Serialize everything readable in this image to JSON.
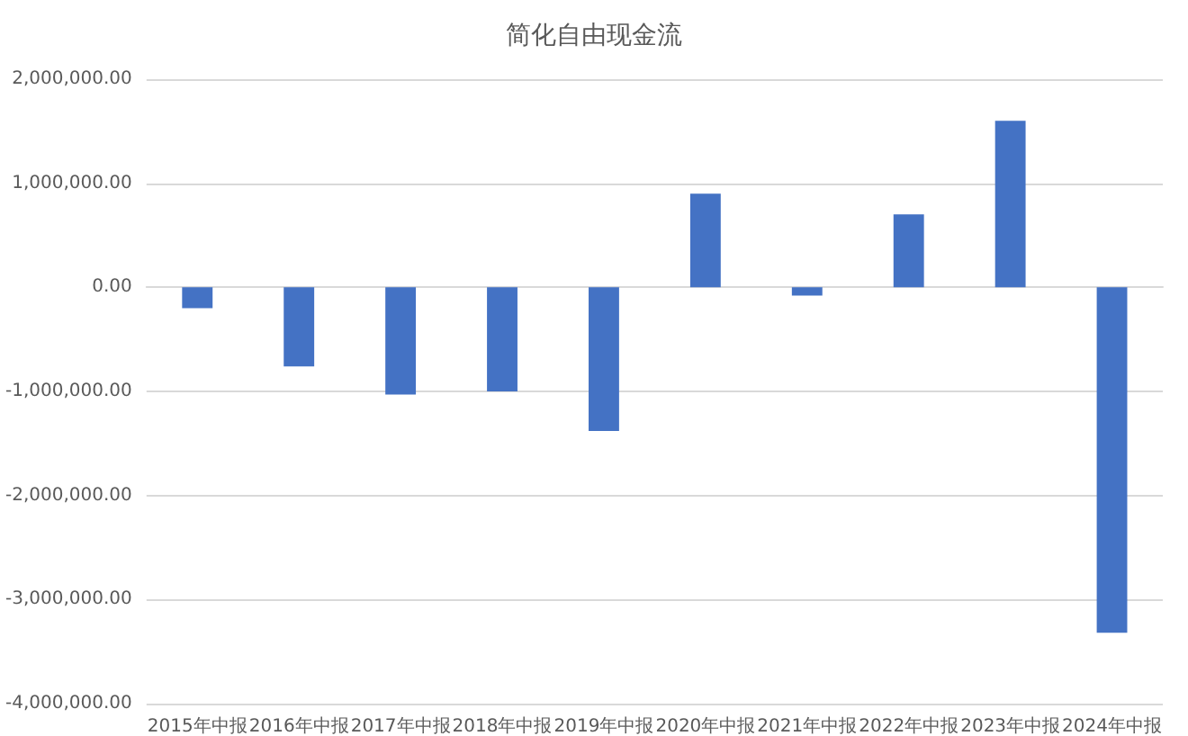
{
  "chart_data": {
    "type": "bar",
    "title": "简化自由现金流",
    "categories": [
      "2015年中报",
      "2016年中报",
      "2017年中报",
      "2018年中报",
      "2019年中报",
      "2020年中报",
      "2021年中报",
      "2022年中报",
      "2023年中报",
      "2024年中报"
    ],
    "values": [
      -200000,
      -760000,
      -1030000,
      -1000000,
      -1380000,
      900000,
      -80000,
      700000,
      1600000,
      -3320000
    ],
    "color": "#4472c4",
    "ylim": [
      -4000000,
      2000000
    ],
    "yticks": [
      {
        "value": -4000000,
        "label": "-4,000,000.00"
      },
      {
        "value": -3000000,
        "label": "-3,000,000.00"
      },
      {
        "value": -2000000,
        "label": "-2,000,000.00"
      },
      {
        "value": -1000000,
        "label": "-1,000,000.00"
      },
      {
        "value": 0,
        "label": "0.00"
      },
      {
        "value": 1000000,
        "label": "1,000,000.00"
      },
      {
        "value": 2000000,
        "label": "2,000,000.00"
      }
    ],
    "grid": "y"
  }
}
